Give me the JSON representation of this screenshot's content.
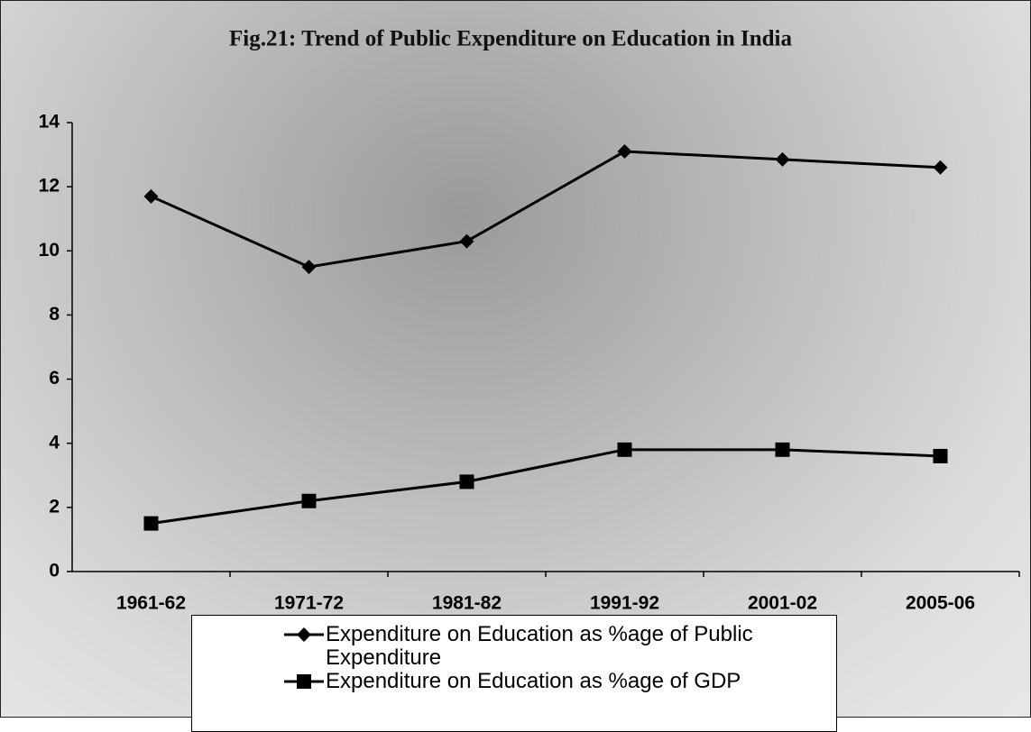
{
  "chart_data": {
    "type": "line",
    "title": "Fig.21: Trend of Public Expenditure on Education in India",
    "categories": [
      "1961-62",
      "1971-72",
      "1981-82",
      "1991-92",
      "2001-02",
      "2005-06"
    ],
    "series": [
      {
        "name": "Expenditure on Education as %age of Public Expenditure",
        "color": "#000000",
        "marker": "diamond",
        "values": [
          11.7,
          9.5,
          10.3,
          13.1,
          12.85,
          12.6
        ]
      },
      {
        "name": "Expenditure on Education as %age of GDP",
        "color": "#000000",
        "marker": "square",
        "values": [
          1.5,
          2.2,
          2.8,
          3.8,
          3.8,
          3.6
        ]
      }
    ],
    "ylim": [
      0,
      14
    ],
    "yticks": [
      0,
      2,
      4,
      6,
      8,
      10,
      12,
      14
    ],
    "grid": false,
    "legend": "bottom"
  }
}
